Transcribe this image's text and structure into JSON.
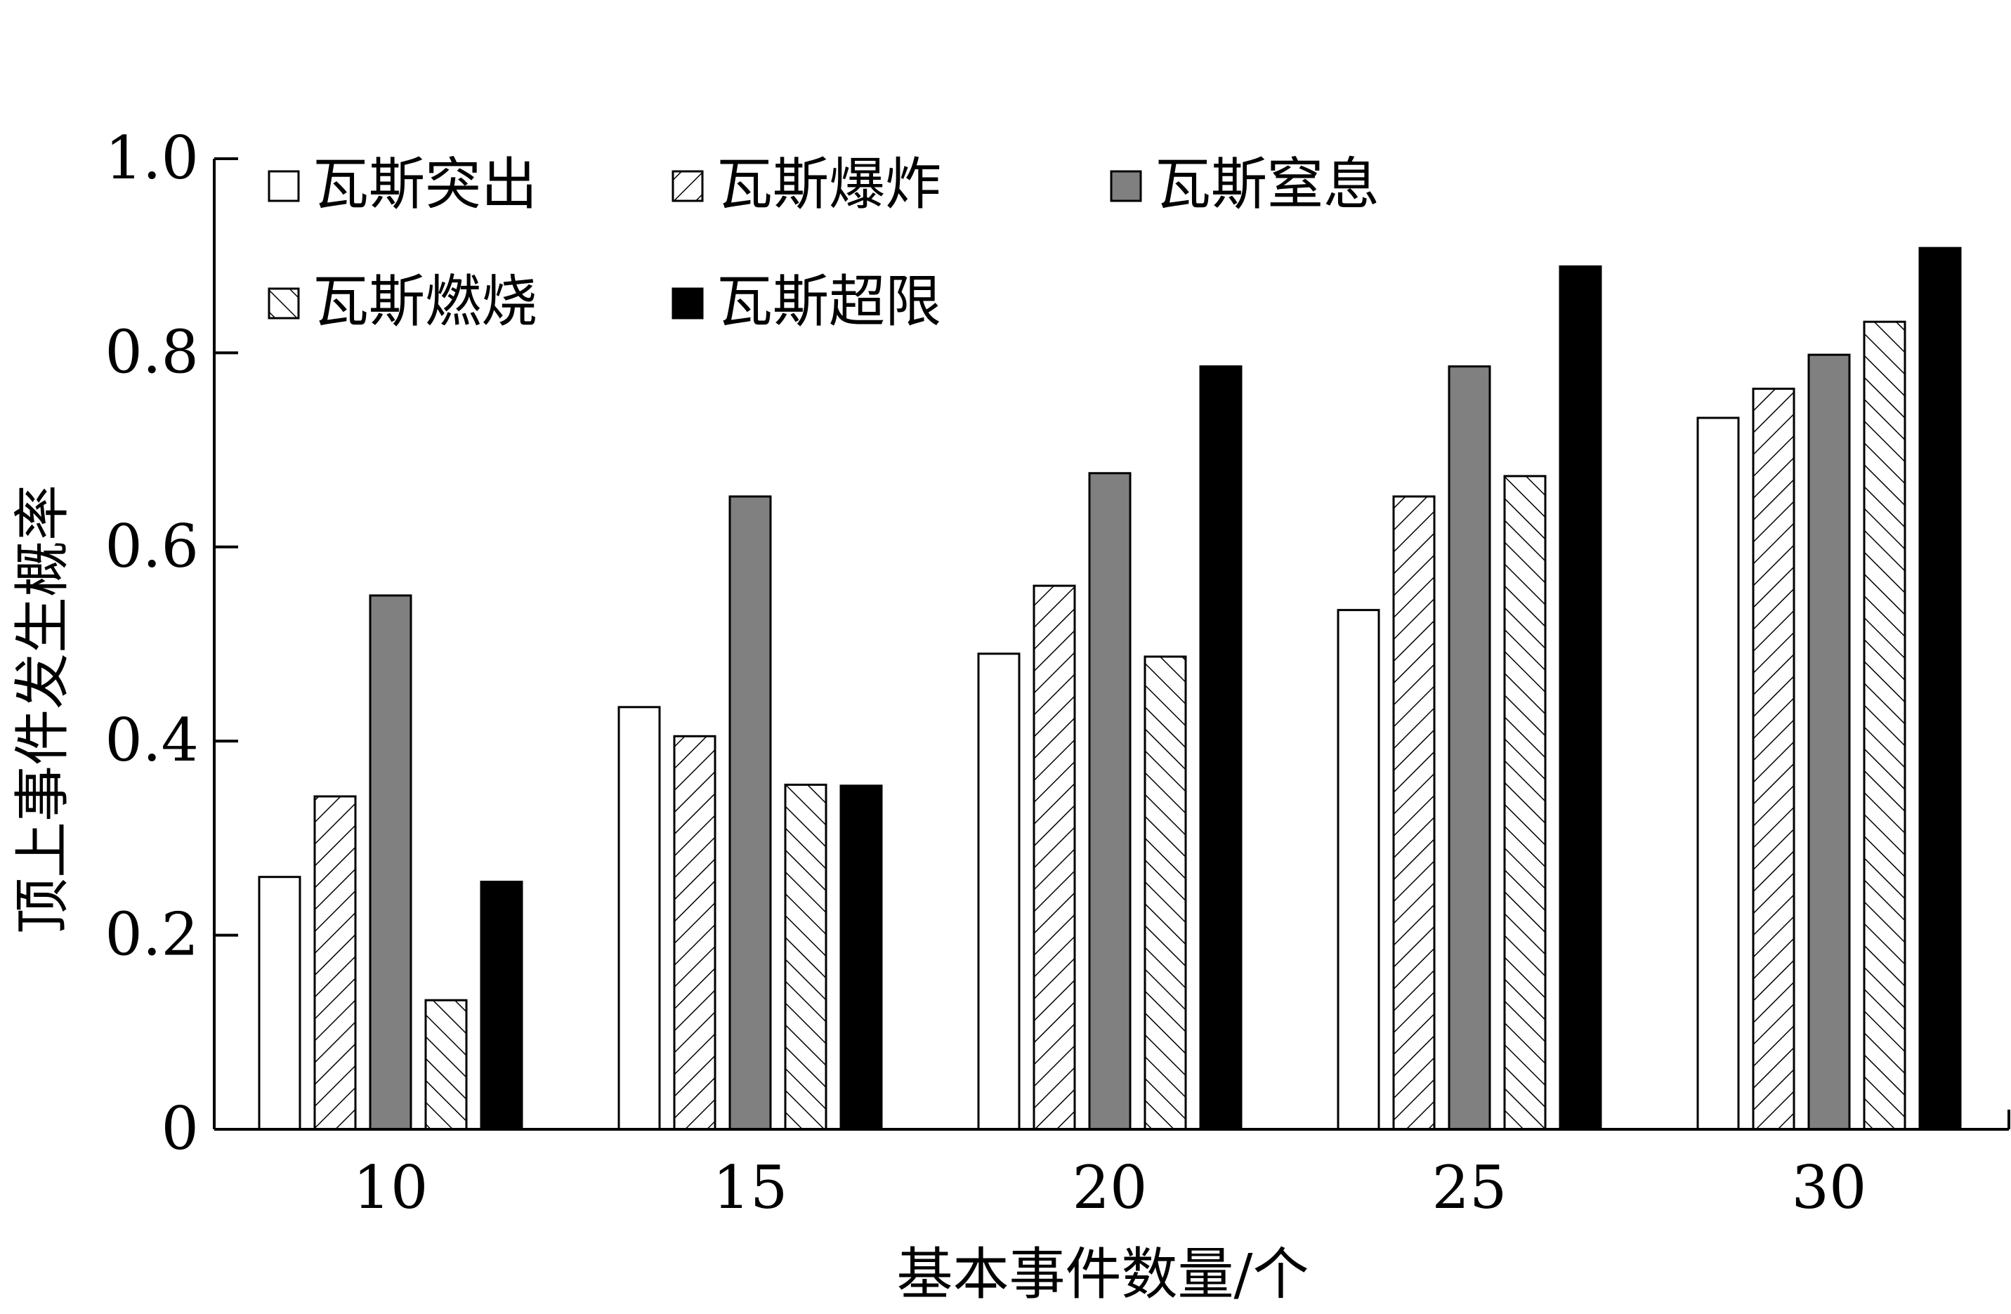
{
  "chart_data": {
    "type": "bar",
    "title": "",
    "xlabel": "基本事件数量/个",
    "ylabel": "顶上事件发生概率",
    "categories": [
      "10",
      "15",
      "20",
      "25",
      "30"
    ],
    "ylim": [
      0,
      1.0
    ],
    "yticks": [
      0,
      0.2,
      0.4,
      0.6,
      0.8,
      1.0
    ],
    "ytick_labels": [
      "0",
      "0.2",
      "0.4",
      "0.6",
      "0.8",
      "1.0"
    ],
    "grid": false,
    "legend_position": "top-left",
    "series": [
      {
        "name": "瓦斯突出",
        "values": [
          0.26,
          0.435,
          0.49,
          0.535,
          0.733
        ],
        "fill": "#ffffff",
        "pattern": "none"
      },
      {
        "name": "瓦斯爆炸",
        "values": [
          0.343,
          0.405,
          0.56,
          0.652,
          0.763
        ],
        "fill": "#ffffff",
        "pattern": "hatch-forward"
      },
      {
        "name": "瓦斯窒息",
        "values": [
          0.55,
          0.652,
          0.676,
          0.786,
          0.798
        ],
        "fill": "#808080",
        "pattern": "none"
      },
      {
        "name": "瓦斯燃烧",
        "values": [
          0.133,
          0.355,
          0.487,
          0.673,
          0.832
        ],
        "fill": "#ffffff",
        "pattern": "hatch-back"
      },
      {
        "name": "瓦斯超限",
        "values": [
          0.255,
          0.354,
          0.786,
          0.889,
          0.908
        ],
        "fill": "#000000",
        "pattern": "none"
      }
    ]
  }
}
